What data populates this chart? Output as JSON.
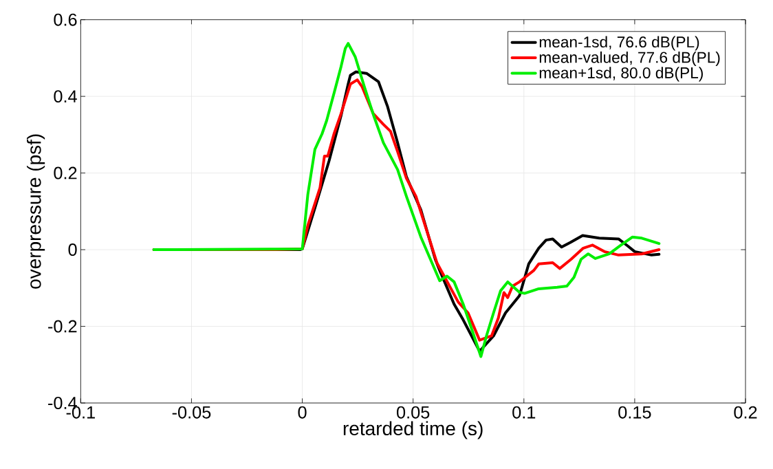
{
  "chart_data": {
    "type": "line",
    "xlabel": "retarded time (s)",
    "ylabel": "overpressure (psf)",
    "xlim": [
      -0.1,
      0.2
    ],
    "ylim": [
      -0.4,
      0.6
    ],
    "xticks": [
      -0.1,
      -0.05,
      0,
      0.05,
      0.1,
      0.15,
      0.2
    ],
    "yticks": [
      -0.4,
      -0.2,
      0,
      0.2,
      0.4,
      0.6
    ],
    "grid": true,
    "legend": "top right",
    "line_style": "solid",
    "marker": "none",
    "series": [
      {
        "name": "mean-1sd,     76.6 dB(PL)",
        "color": "#000000",
        "x": [
          -0.067,
          -0.001,
          0.0,
          0.0057,
          0.0121,
          0.0175,
          0.0207,
          0.0217,
          0.0242,
          0.029,
          0.0344,
          0.0385,
          0.043,
          0.047,
          0.0535,
          0.06,
          0.062,
          0.0685,
          0.0726,
          0.08,
          0.0863,
          0.0917,
          0.098,
          0.1022,
          0.1067,
          0.11,
          0.113,
          0.117,
          0.121,
          0.1265,
          0.134,
          0.1427,
          0.1468,
          0.15,
          0.1576,
          0.161
        ],
        "values": [
          0,
          0,
          0.002,
          0.109,
          0.232,
          0.35,
          0.432,
          0.455,
          0.464,
          0.46,
          0.438,
          0.373,
          0.279,
          0.19,
          0.104,
          -0.025,
          -0.054,
          -0.142,
          -0.183,
          -0.265,
          -0.225,
          -0.165,
          -0.12,
          -0.037,
          0.004,
          0.025,
          0.028,
          0.007,
          0.019,
          0.037,
          0.03,
          0.028,
          0.01,
          -0.005,
          -0.014,
          -0.012
        ]
      },
      {
        "name": "mean-valued, 77.6 dB(PL)",
        "color": "#ff0000",
        "x": [
          -0.067,
          -0.012,
          0.0,
          0.0025,
          0.008,
          0.01,
          0.0115,
          0.0143,
          0.0175,
          0.0217,
          0.0248,
          0.027,
          0.032,
          0.0366,
          0.0398,
          0.043,
          0.047,
          0.0513,
          0.0535,
          0.0608,
          0.0704,
          0.0748,
          0.08,
          0.0854,
          0.0885,
          0.091,
          0.0927,
          0.0949,
          0.098,
          0.1045,
          0.1067,
          0.113,
          0.1162,
          0.1213,
          0.1268,
          0.131,
          0.1363,
          0.1427,
          0.1532,
          0.161
        ],
        "values": [
          0,
          0,
          0.002,
          0.063,
          0.162,
          0.244,
          0.244,
          0.302,
          0.355,
          0.432,
          0.443,
          0.425,
          0.355,
          0.327,
          0.309,
          0.256,
          0.186,
          0.139,
          0.098,
          -0.035,
          -0.137,
          -0.165,
          -0.236,
          -0.225,
          -0.178,
          -0.112,
          -0.125,
          -0.095,
          -0.084,
          -0.054,
          -0.037,
          -0.034,
          -0.049,
          -0.025,
          0.004,
          0.012,
          -0.005,
          -0.014,
          -0.011,
          0
        ]
      },
      {
        "name": "mean+1sd,     80.0 dB(PL)",
        "color": "#00ee00",
        "x": [
          -0.067,
          0.0,
          0.0025,
          0.0057,
          0.0089,
          0.011,
          0.0143,
          0.0175,
          0.0194,
          0.0207,
          0.0239,
          0.028,
          0.0322,
          0.0366,
          0.043,
          0.047,
          0.0535,
          0.062,
          0.0653,
          0.0685,
          0.0726,
          0.0768,
          0.0806,
          0.0831,
          0.0863,
          0.0895,
          0.0927,
          0.098,
          0.1003,
          0.1067,
          0.115,
          0.1194,
          0.1226,
          0.1258,
          0.129,
          0.1322,
          0.1385,
          0.1436,
          0.149,
          0.1532,
          0.161
        ],
        "values": [
          0,
          0.002,
          0.144,
          0.262,
          0.302,
          0.337,
          0.408,
          0.478,
          0.525,
          0.538,
          0.503,
          0.425,
          0.35,
          0.279,
          0.209,
          0.139,
          0.033,
          -0.081,
          -0.069,
          -0.084,
          -0.142,
          -0.213,
          -0.279,
          -0.225,
          -0.165,
          -0.107,
          -0.084,
          -0.111,
          -0.114,
          -0.102,
          -0.098,
          -0.095,
          -0.072,
          -0.025,
          -0.011,
          -0.023,
          -0.011,
          0.011,
          0.033,
          0.03,
          0.016
        ]
      }
    ]
  }
}
